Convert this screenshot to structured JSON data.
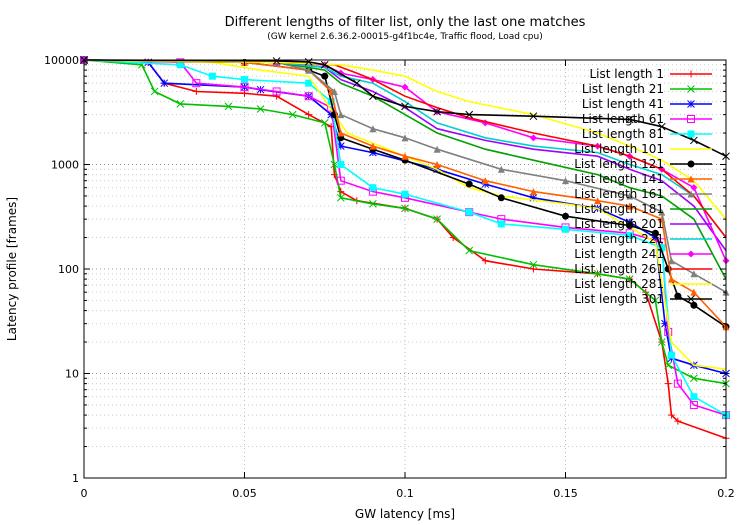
{
  "chart_data": {
    "type": "line",
    "title": "Different lengths of filter list, only the last one matches",
    "subtitle": "(GW kernel 2.6.36.2-00015-g4f1bc4e, Traffic flood, Load cpu)",
    "xlabel": "GW latency [ms]",
    "ylabel": "Latency profile [frames]",
    "xlim": [
      0,
      0.2
    ],
    "ylim": [
      1,
      10000
    ],
    "yscale": "log",
    "grid": true,
    "legend_position": "top-right",
    "x_ticks": [
      {
        "v": 0,
        "label": "0"
      },
      {
        "v": 0.05,
        "label": "0.05"
      },
      {
        "v": 0.1,
        "label": "0.1"
      },
      {
        "v": 0.15,
        "label": "0.15"
      },
      {
        "v": 0.2,
        "label": "0.2"
      }
    ],
    "y_ticks": [
      {
        "v": 1,
        "label": "1"
      },
      {
        "v": 10,
        "label": "10"
      },
      {
        "v": 100,
        "label": "100"
      },
      {
        "v": 1000,
        "label": "1000"
      },
      {
        "v": 10000,
        "label": "10000"
      }
    ],
    "series": [
      {
        "name": "List length 1",
        "color": "#ff0000",
        "marker": "plus",
        "x": [
          0,
          0.02,
          0.025,
          0.035,
          0.05,
          0.06,
          0.07,
          0.077,
          0.078,
          0.08,
          0.085,
          0.1,
          0.11,
          0.115,
          0.125,
          0.14,
          0.16,
          0.17,
          0.175,
          0.18,
          0.182,
          0.183,
          0.185,
          0.2
        ],
        "y": [
          10000,
          9500,
          6000,
          5000,
          4800,
          4500,
          3000,
          2300,
          800,
          550,
          450,
          380,
          300,
          200,
          120,
          100,
          90,
          80,
          60,
          20,
          8,
          4,
          3.5,
          2.4
        ]
      },
      {
        "name": "List length 21",
        "color": "#00c000",
        "marker": "cross",
        "x": [
          0,
          0.018,
          0.022,
          0.03,
          0.045,
          0.055,
          0.065,
          0.075,
          0.078,
          0.08,
          0.09,
          0.1,
          0.11,
          0.12,
          0.14,
          0.16,
          0.17,
          0.178,
          0.18,
          0.182,
          0.19,
          0.2
        ],
        "y": [
          10000,
          9000,
          5000,
          3800,
          3600,
          3400,
          3000,
          2500,
          1000,
          480,
          420,
          380,
          300,
          150,
          110,
          90,
          80,
          50,
          20,
          12,
          9,
          8
        ]
      },
      {
        "name": "List length 41",
        "color": "#0000ff",
        "marker": "star",
        "x": [
          0,
          0.02,
          0.025,
          0.05,
          0.055,
          0.07,
          0.077,
          0.08,
          0.09,
          0.11,
          0.125,
          0.14,
          0.16,
          0.17,
          0.178,
          0.181,
          0.183,
          0.19,
          0.2
        ],
        "y": [
          10000,
          9500,
          6000,
          5500,
          5200,
          4500,
          3000,
          1500,
          1300,
          900,
          650,
          480,
          380,
          280,
          200,
          30,
          14,
          12,
          10
        ]
      },
      {
        "name": "List length 61",
        "color": "#ff00ff",
        "marker": "square",
        "x": [
          0,
          0.03,
          0.035,
          0.05,
          0.06,
          0.07,
          0.077,
          0.08,
          0.09,
          0.1,
          0.12,
          0.13,
          0.15,
          0.17,
          0.18,
          0.182,
          0.185,
          0.19,
          0.2
        ],
        "y": [
          10000,
          9500,
          6000,
          5500,
          5000,
          4500,
          3500,
          700,
          550,
          480,
          350,
          300,
          250,
          220,
          180,
          25,
          8,
          5,
          4
        ]
      },
      {
        "name": "List length 81",
        "color": "#00ffff",
        "marker": "squarefill",
        "x": [
          0,
          0.03,
          0.04,
          0.05,
          0.07,
          0.077,
          0.08,
          0.09,
          0.1,
          0.12,
          0.13,
          0.15,
          0.17,
          0.18,
          0.183,
          0.19,
          0.2
        ],
        "y": [
          10000,
          9000,
          7000,
          6500,
          6000,
          4000,
          1000,
          600,
          520,
          350,
          270,
          240,
          210,
          160,
          15,
          6,
          4
        ]
      },
      {
        "name": "List length 101",
        "color": "#ffff00",
        "marker": "none",
        "x": [
          0,
          0.04,
          0.055,
          0.07,
          0.078,
          0.082,
          0.09,
          0.1,
          0.11,
          0.12,
          0.13,
          0.15,
          0.16,
          0.17,
          0.178,
          0.183,
          0.19,
          0.2
        ],
        "y": [
          10000,
          9500,
          8000,
          7000,
          3000,
          2000,
          1600,
          1200,
          900,
          600,
          500,
          420,
          380,
          250,
          180,
          20,
          12,
          11
        ]
      },
      {
        "name": "List length 121",
        "color": "#000000",
        "marker": "circle",
        "x": [
          0,
          0.05,
          0.07,
          0.075,
          0.078,
          0.08,
          0.09,
          0.1,
          0.12,
          0.13,
          0.15,
          0.17,
          0.178,
          0.182,
          0.185,
          0.19,
          0.2
        ],
        "y": [
          10000,
          9500,
          8000,
          7000,
          3000,
          1800,
          1400,
          1100,
          650,
          480,
          320,
          260,
          220,
          100,
          55,
          45,
          28
        ]
      },
      {
        "name": "List length 141",
        "color": "#ff6000",
        "marker": "triangle",
        "x": [
          0,
          0.05,
          0.07,
          0.077,
          0.08,
          0.09,
          0.1,
          0.11,
          0.125,
          0.14,
          0.16,
          0.17,
          0.18,
          0.183,
          0.19,
          0.2
        ],
        "y": [
          10000,
          9500,
          8000,
          5000,
          2000,
          1500,
          1200,
          1000,
          700,
          550,
          450,
          400,
          300,
          80,
          60,
          28
        ]
      },
      {
        "name": "List length 161",
        "color": "#808080",
        "marker": "triangle",
        "x": [
          0,
          0.06,
          0.07,
          0.078,
          0.08,
          0.09,
          0.1,
          0.11,
          0.13,
          0.15,
          0.17,
          0.18,
          0.183,
          0.19,
          0.2
        ],
        "y": [
          10000,
          9500,
          8000,
          5000,
          3000,
          2200,
          1800,
          1400,
          900,
          700,
          500,
          350,
          120,
          90,
          60
        ]
      },
      {
        "name": "List length 181",
        "color": "#00a000",
        "marker": "none",
        "x": [
          0,
          0.06,
          0.075,
          0.08,
          0.09,
          0.1,
          0.11,
          0.125,
          0.14,
          0.16,
          0.17,
          0.18,
          0.19,
          0.2
        ],
        "y": [
          10000,
          9500,
          8000,
          6000,
          4500,
          3000,
          2000,
          1400,
          1100,
          800,
          600,
          500,
          300,
          80
        ]
      },
      {
        "name": "List length 201",
        "color": "#a000ff",
        "marker": "none",
        "x": [
          0,
          0.06,
          0.075,
          0.08,
          0.09,
          0.1,
          0.11,
          0.125,
          0.14,
          0.16,
          0.17,
          0.18,
          0.19,
          0.2
        ],
        "y": [
          10000,
          9500,
          8500,
          6500,
          5000,
          3500,
          2200,
          1700,
          1400,
          1200,
          900,
          700,
          400,
          150
        ]
      },
      {
        "name": "List length 221",
        "color": "#00d0d0",
        "marker": "none",
        "x": [
          0,
          0.06,
          0.075,
          0.08,
          0.09,
          0.1,
          0.11,
          0.125,
          0.14,
          0.16,
          0.17,
          0.18,
          0.19,
          0.2
        ],
        "y": [
          10000,
          9500,
          8500,
          7000,
          6000,
          4000,
          2500,
          1800,
          1500,
          1300,
          1000,
          800,
          500,
          200
        ]
      },
      {
        "name": "List length 241",
        "color": "#ff00ff",
        "marker": "diamond",
        "x": [
          0,
          0.06,
          0.075,
          0.08,
          0.09,
          0.1,
          0.11,
          0.125,
          0.14,
          0.16,
          0.17,
          0.18,
          0.19,
          0.2
        ],
        "y": [
          10000,
          9500,
          9000,
          7500,
          6500,
          5500,
          3200,
          2500,
          1800,
          1500,
          1200,
          900,
          600,
          120
        ]
      },
      {
        "name": "List length 261",
        "color": "#ff0000",
        "marker": "none",
        "x": [
          0,
          0.06,
          0.078,
          0.085,
          0.09,
          0.1,
          0.11,
          0.12,
          0.14,
          0.16,
          0.17,
          0.18,
          0.19,
          0.2
        ],
        "y": [
          10000,
          9500,
          9000,
          7500,
          6500,
          4500,
          3500,
          2800,
          2000,
          1500,
          1200,
          900,
          500,
          200
        ]
      },
      {
        "name": "List length 281",
        "color": "#ffff00",
        "marker": "none",
        "x": [
          0,
          0.06,
          0.08,
          0.09,
          0.1,
          0.11,
          0.12,
          0.14,
          0.16,
          0.17,
          0.18,
          0.19,
          0.2
        ],
        "y": [
          10000,
          9500,
          9000,
          8000,
          7000,
          5000,
          4000,
          3000,
          2000,
          1500,
          1100,
          700,
          300
        ]
      },
      {
        "name": "List length 301",
        "color": "#000000",
        "marker": "cross",
        "x": [
          0,
          0.06,
          0.07,
          0.075,
          0.085,
          0.09,
          0.1,
          0.11,
          0.12,
          0.14,
          0.17,
          0.18,
          0.19,
          0.2
        ],
        "y": [
          10000,
          9800,
          9600,
          9000,
          6000,
          4500,
          3600,
          3200,
          3000,
          2900,
          2700,
          2300,
          1700,
          1200
        ]
      }
    ]
  }
}
